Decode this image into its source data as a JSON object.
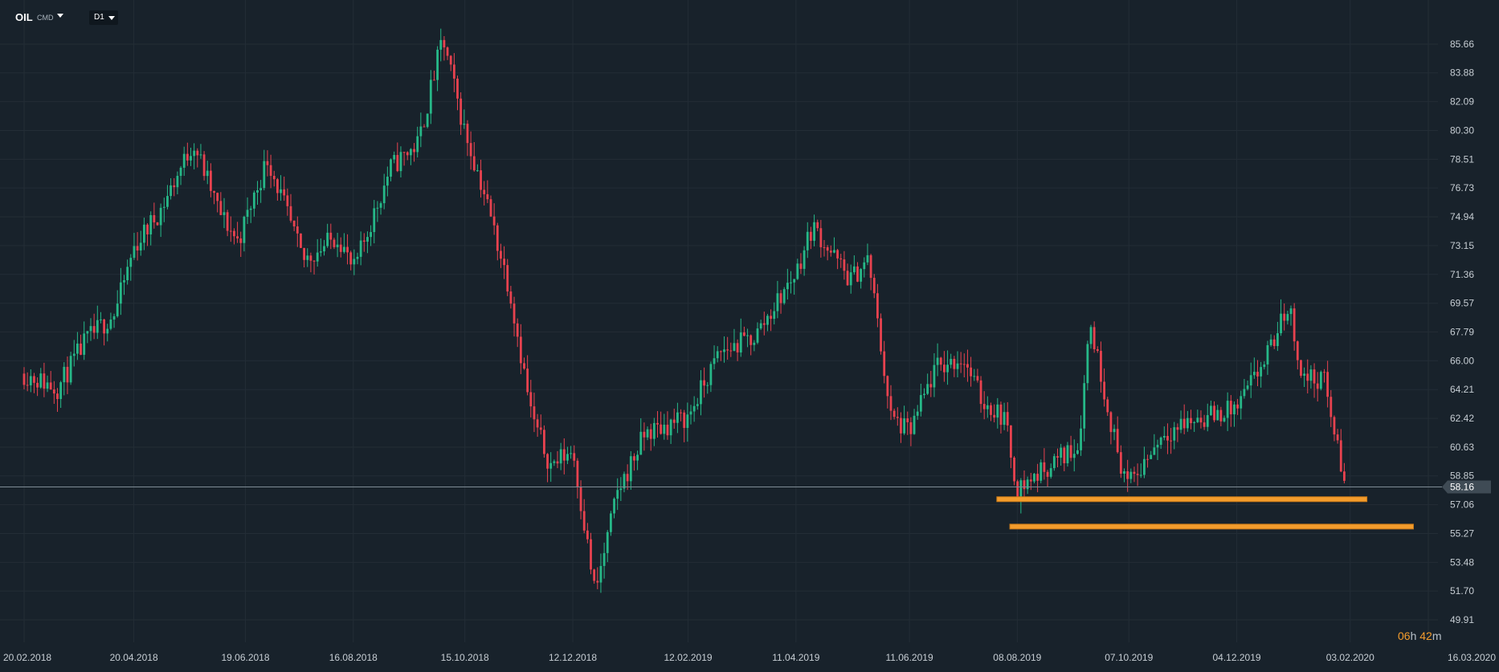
{
  "header": {
    "symbol": "OIL",
    "asset_type": "CMD",
    "timeframe": "D1"
  },
  "countdown": {
    "hours": "06",
    "hours_unit": "h",
    "minutes": "42",
    "minutes_unit": "m"
  },
  "colors": {
    "background": "#18222b",
    "grid": "#232d36",
    "up": "#26b888",
    "down": "#e8424f",
    "support": "#f39c2c",
    "price_tag": "#3f4b55",
    "axis_text": "#c6cdd3"
  },
  "chart_data": {
    "type": "candlestick",
    "title": "",
    "xlabel": "",
    "ylabel": "",
    "ylim": [
      49.91,
      87.0
    ],
    "grid": true,
    "y_ticks": [
      85.66,
      83.88,
      82.09,
      80.3,
      78.51,
      76.73,
      74.94,
      73.15,
      71.36,
      69.57,
      67.79,
      66.0,
      64.21,
      62.42,
      60.63,
      58.85,
      57.06,
      55.27,
      53.48,
      51.7,
      49.91
    ],
    "x_ticks": [
      "20.02.2018",
      "20.04.2018",
      "19.06.2018",
      "16.08.2018",
      "15.10.2018",
      "12.12.2018",
      "12.02.2019",
      "11.04.2019",
      "11.06.2019",
      "08.08.2019",
      "07.10.2019",
      "04.12.2019",
      "03.02.2020",
      "16.03.2020"
    ],
    "x_range": [
      "20.02.2018",
      "16.03.2020"
    ],
    "current_price": 58.16,
    "price_path": [
      [
        "20.02.2018",
        65.2
      ],
      [
        "10.03.2018",
        64.3
      ],
      [
        "25.03.2018",
        67.2
      ],
      [
        "10.04.2018",
        69.0
      ],
      [
        "20.04.2018",
        73.0
      ],
      [
        "05.05.2018",
        75.5
      ],
      [
        "22.05.2018",
        79.6
      ],
      [
        "05.06.2018",
        75.2
      ],
      [
        "15.06.2018",
        73.4
      ],
      [
        "01.07.2018",
        78.6
      ],
      [
        "20.07.2018",
        72.2
      ],
      [
        "08.08.2018",
        73.8
      ],
      [
        "16.08.2018",
        71.5
      ],
      [
        "05.09.2018",
        78.0
      ],
      [
        "20.09.2018",
        79.5
      ],
      [
        "03.10.2018",
        86.0
      ],
      [
        "15.10.2018",
        80.2
      ],
      [
        "25.10.2018",
        76.6
      ],
      [
        "08.11.2018",
        70.5
      ],
      [
        "20.11.2018",
        62.5
      ],
      [
        "30.11.2018",
        59.5
      ],
      [
        "12.12.2018",
        60.5
      ],
      [
        "24.12.2018",
        51.5
      ],
      [
        "05.01.2019",
        57.8
      ],
      [
        "20.01.2019",
        61.5
      ],
      [
        "12.02.2019",
        62.5
      ],
      [
        "01.03.2019",
        66.5
      ],
      [
        "20.03.2019",
        67.5
      ],
      [
        "11.04.2019",
        71.5
      ],
      [
        "20.04.2019",
        74.4
      ],
      [
        "10.05.2019",
        71.0
      ],
      [
        "20.05.2019",
        72.3
      ],
      [
        "01.06.2019",
        62.5
      ],
      [
        "11.06.2019",
        61.5
      ],
      [
        "25.06.2019",
        65.5
      ],
      [
        "10.07.2019",
        66.2
      ],
      [
        "20.07.2019",
        63.5
      ],
      [
        "01.08.2019",
        62.5
      ],
      [
        "08.08.2019",
        58.0
      ],
      [
        "25.08.2019",
        59.5
      ],
      [
        "10.09.2019",
        60.8
      ],
      [
        "16.09.2019",
        68.5
      ],
      [
        "01.10.2019",
        60.2
      ],
      [
        "07.10.2019",
        58.2
      ],
      [
        "25.10.2019",
        61.5
      ],
      [
        "10.11.2019",
        62.3
      ],
      [
        "04.12.2019",
        63.0
      ],
      [
        "20.12.2019",
        66.2
      ],
      [
        "01.01.2020",
        69.5
      ],
      [
        "08.01.2020",
        65.0
      ],
      [
        "20.01.2020",
        64.8
      ],
      [
        "31.01.2020",
        58.3
      ]
    ],
    "support_levels": [
      {
        "price": 57.4,
        "from": "28.07.2019",
        "to": "12.02.2020"
      },
      {
        "price": 55.7,
        "from": "04.08.2019",
        "to": "08.03.2020"
      }
    ]
  }
}
